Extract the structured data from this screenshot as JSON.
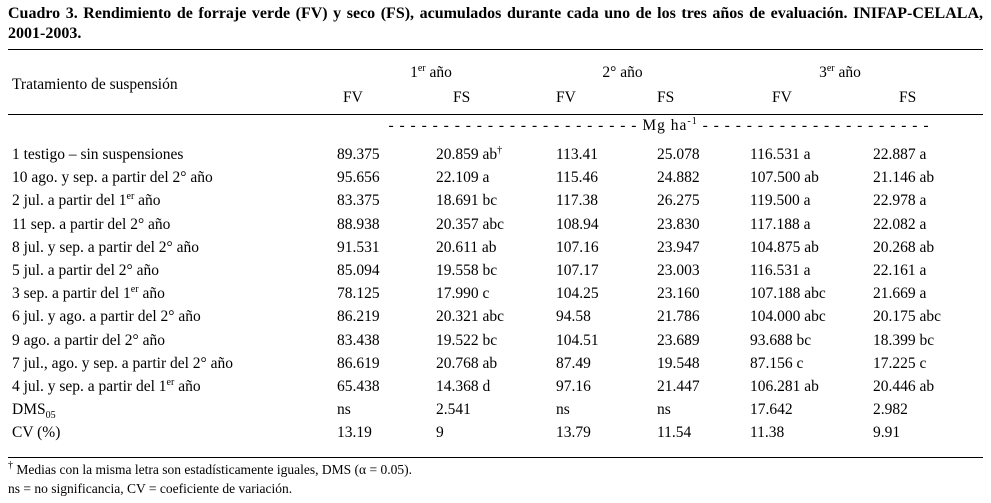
{
  "caption": {
    "label": "Cuadro 3.",
    "text": "Rendimiento de forraje verde (FV) y seco (FS), acumulados durante cada uno de los tres años de evaluación. INIFAP-CELALA, 2001-2003."
  },
  "header": {
    "treatment": "Tratamiento de suspensión",
    "years": [
      {
        "num": "1",
        "sup": "er",
        "label": " año"
      },
      {
        "num": "2° año",
        "sup": "",
        "label": ""
      },
      {
        "num": "3",
        "sup": "er",
        "label": " año"
      }
    ],
    "fv": "FV",
    "fs": "FS"
  },
  "units": {
    "dashes_left": "- - - - - - - - - - - - - - - - - - - - - - -",
    "label": "Mg ha",
    "exp": "-1",
    "dashes_right": "- - - - - - - - - - - - - - - - - - - - -"
  },
  "rows": [
    {
      "t": "1 testigo – sin suspensiones",
      "t_sup": "",
      "t_after": "",
      "v": [
        "89.375",
        "20.859 ab",
        "113.41",
        "25.078",
        "116.531 a",
        "22.887 a"
      ],
      "fs1_sup": "†"
    },
    {
      "t": "10 ago. y sep. a partir del 2° año",
      "t_sup": "",
      "t_after": "",
      "v": [
        "95.656",
        "22.109 a",
        "115.46",
        "24.882",
        "107.500 ab",
        "21.146 ab"
      ],
      "fs1_sup": ""
    },
    {
      "t": "2 jul. a partir del 1",
      "t_sup": "er",
      "t_after": " año",
      "v": [
        "83.375",
        "18.691 bc",
        "117.38",
        "26.275",
        "119.500 a",
        "22.978 a"
      ],
      "fs1_sup": ""
    },
    {
      "t": "11 sep. a partir del 2° año",
      "t_sup": "",
      "t_after": "",
      "v": [
        "88.938",
        "20.357 abc",
        "108.94",
        "23.830",
        "117.188 a",
        "22.082 a"
      ],
      "fs1_sup": ""
    },
    {
      "t": "8 jul. y sep. a partir del 2° año",
      "t_sup": "",
      "t_after": "",
      "v": [
        "91.531",
        "20.611 ab",
        "107.16",
        "23.947",
        "104.875 ab",
        "20.268 ab"
      ],
      "fs1_sup": ""
    },
    {
      "t": "5 jul. a partir del 2° año",
      "t_sup": "",
      "t_after": "",
      "v": [
        "85.094",
        "19.558 bc",
        "107.17",
        "23.003",
        "116.531 a",
        "22.161 a"
      ],
      "fs1_sup": ""
    },
    {
      "t": "3 sep. a partir del 1",
      "t_sup": "er",
      "t_after": " año",
      "v": [
        "78.125",
        "17.990 c",
        "104.25",
        "23.160",
        "107.188 abc",
        "21.669 a"
      ],
      "fs1_sup": ""
    },
    {
      "t": "6 jul. y ago. a partir del 2° año",
      "t_sup": "",
      "t_after": "",
      "v": [
        "86.219",
        "20.321 abc",
        "94.58",
        "21.786",
        "104.000 abc",
        "20.175 abc"
      ],
      "fs1_sup": ""
    },
    {
      "t": "9 ago. a partir del 2° año",
      "t_sup": "",
      "t_after": "",
      "v": [
        "83.438",
        "19.522 bc",
        "104.51",
        "23.689",
        "93.688 bc",
        "18.399 bc"
      ],
      "fs1_sup": ""
    },
    {
      "t": "7 jul., ago. y sep. a partir del 2° año",
      "t_sup": "",
      "t_after": "",
      "v": [
        "86.619",
        "20.768 ab",
        "87.49",
        "19.548",
        "87.156 c",
        "17.225 c"
      ],
      "fs1_sup": ""
    },
    {
      "t": "4 jul. y sep. a partir del 1",
      "t_sup": "er",
      "t_after": " año",
      "v": [
        "65.438",
        "14.368 d",
        "97.16",
        "21.447",
        "106.281 ab",
        "20.446 ab"
      ],
      "fs1_sup": ""
    }
  ],
  "stats": [
    {
      "t": "DMS",
      "t_sub": "05",
      "v": [
        "ns",
        "2.541",
        "ns",
        "ns",
        "17.642",
        "2.982"
      ]
    },
    {
      "t": "CV (%)",
      "t_sub": "",
      "v": [
        "13.19",
        "9",
        "13.79",
        "11.54",
        "11.38",
        "9.91"
      ]
    }
  ],
  "footnotes": {
    "f1_mark": "†",
    "f1": " Medias con la misma letra son estadísticamente iguales, DMS (α = 0.05).",
    "f2": "ns = no significancia, CV = coeficiente de variación."
  }
}
